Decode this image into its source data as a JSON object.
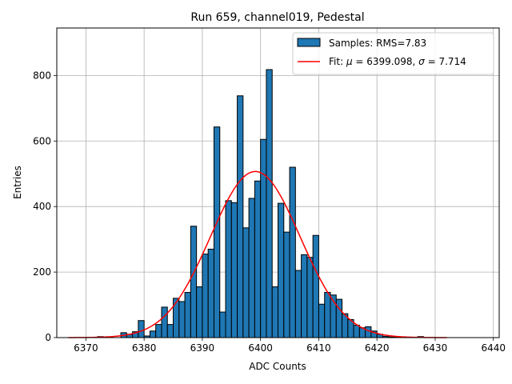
{
  "chart_data": {
    "type": "bar",
    "title": "Run 659, channel019, Pedestal",
    "xlabel": "ADC Counts",
    "ylabel": "Entries",
    "xlim": [
      6365,
      6441
    ],
    "ylim": [
      0,
      945
    ],
    "xticks": [
      6370,
      6380,
      6390,
      6400,
      6410,
      6420,
      6430,
      6440
    ],
    "yticks": [
      0,
      200,
      400,
      600,
      800
    ],
    "grid": true,
    "legend_position": "top-right",
    "histogram": {
      "name": "Samples: RMS=7.83",
      "bin_width": 1,
      "bin_start": 6372,
      "values": [
        3,
        0,
        0,
        0,
        15,
        10,
        18,
        52,
        5,
        20,
        40,
        93,
        40,
        120,
        110,
        138,
        340,
        155,
        255,
        270,
        643,
        78,
        418,
        412,
        738,
        335,
        425,
        478,
        605,
        818,
        155,
        410,
        322,
        520,
        205,
        253,
        245,
        312,
        102,
        138,
        130,
        117,
        73,
        55,
        38,
        30,
        33,
        20,
        10,
        4,
        2,
        1,
        0,
        0,
        0,
        3
      ]
    },
    "fit": {
      "name_prefix": "Fit: ",
      "mu_symbol": "μ",
      "sigma_symbol": "σ",
      "mu_text": " = 6399.098, ",
      "sigma_text": " = 7.714",
      "mu": 6399.098,
      "sigma": 7.714,
      "amplitude": 507,
      "x_range": [
        6367,
        6432
      ],
      "color": "#ff0000"
    },
    "bar_color": "#1f77b4"
  }
}
